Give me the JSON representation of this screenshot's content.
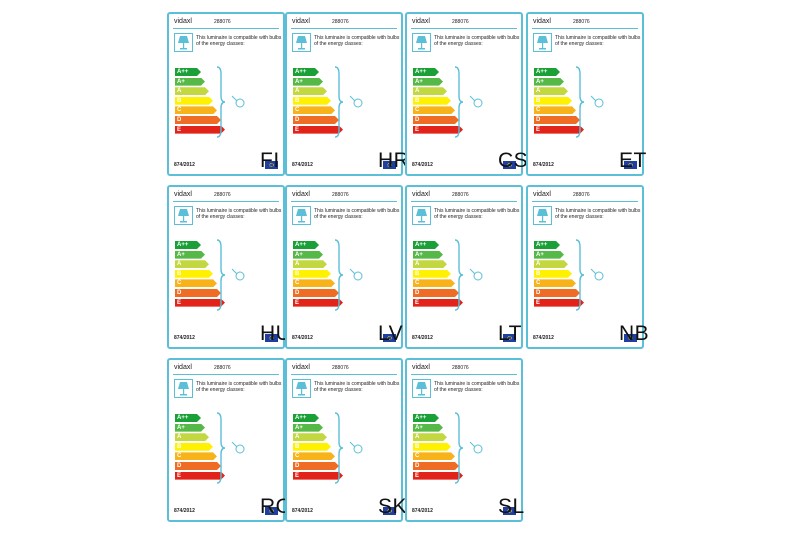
{
  "brand": "vidaxl",
  "model": "288076",
  "compat_text": "This luminaire is compatible with bulbs of the energy classes:",
  "regulation": "874/2012",
  "energy_classes": [
    {
      "label": "A++",
      "color": "#1aa037"
    },
    {
      "label": "A+",
      "color": "#55b847"
    },
    {
      "label": "A",
      "color": "#c3d740"
    },
    {
      "label": "B",
      "color": "#fff200"
    },
    {
      "label": "C",
      "color": "#f8b21a"
    },
    {
      "label": "D",
      "color": "#ee6c23"
    },
    {
      "label": "E",
      "color": "#e2231a"
    }
  ],
  "accent_color": "#5bbfd8",
  "labels": [
    {
      "lang": "FI"
    },
    {
      "lang": "HR"
    },
    {
      "lang": "CS"
    },
    {
      "lang": "ET"
    },
    {
      "lang": "HU"
    },
    {
      "lang": "LV"
    },
    {
      "lang": "LT"
    },
    {
      "lang": "NB"
    },
    {
      "lang": "RO"
    },
    {
      "lang": "SK"
    },
    {
      "lang": "SL"
    }
  ]
}
